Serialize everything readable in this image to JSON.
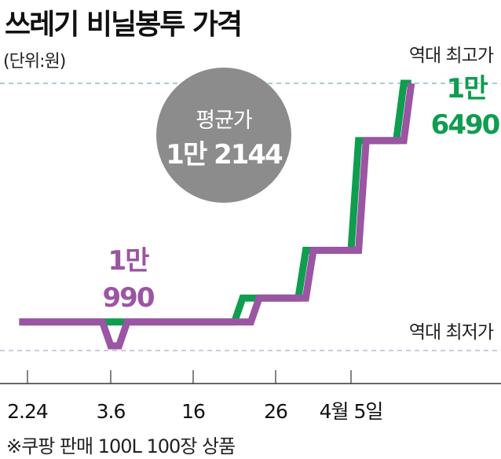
{
  "chart_data": {
    "type": "line",
    "title": "쓰레기 비닐봉투 가격",
    "unit_note": "(단위:원)",
    "footnote": "※쿠팡 판매 100L 100장 상품",
    "x_ticks": [
      {
        "date": "2.24",
        "label": "2.24"
      },
      {
        "date": "3.6",
        "label": "3.6"
      },
      {
        "date": "3.16",
        "label": "16"
      },
      {
        "date": "3.26",
        "label": "26"
      },
      {
        "date": "4.5",
        "label": "4월 5일"
      }
    ],
    "series": [
      {
        "color": "#0f9d4f",
        "points": [
          [
            "2.23",
            11490
          ],
          [
            "3.21",
            11490
          ],
          [
            "3.22",
            11990
          ],
          [
            "3.29",
            11990
          ],
          [
            "3.30",
            12990
          ],
          [
            "4.5",
            12990
          ],
          [
            "4.6",
            15290
          ],
          [
            "4.11",
            15290
          ],
          [
            "4.12",
            16490
          ],
          [
            "4.13",
            16490
          ]
        ]
      },
      {
        "color": "#9a55a3",
        "points": [
          [
            "2.23",
            11490
          ],
          [
            "3.5",
            11490
          ],
          [
            "3.6",
            10990
          ],
          [
            "3.7",
            10990
          ],
          [
            "3.8",
            11490
          ],
          [
            "3.23",
            11490
          ],
          [
            "3.24",
            11990
          ],
          [
            "3.30",
            11990
          ],
          [
            "3.31",
            12990
          ],
          [
            "4.6",
            12990
          ],
          [
            "4.7",
            15290
          ],
          [
            "4.12",
            15290
          ],
          [
            "4.13",
            16490
          ]
        ]
      }
    ],
    "reference_lines": [
      {
        "label": "역대 최고가",
        "value": 16490,
        "color": "#8fbfb5"
      },
      {
        "label": "역대 최저가",
        "value": 10990,
        "color": "#c9b3cf"
      }
    ],
    "annotations": {
      "max": {
        "line1": "1만",
        "line2": "6490",
        "color": "#0f9d4f"
      },
      "min": {
        "line1": "1만",
        "line2": "990",
        "color": "#9a55a3"
      },
      "average": {
        "label": "평균가",
        "value": "1만 2144",
        "color": "#8c8c8c"
      }
    },
    "ylim": [
      10990,
      16490
    ],
    "grid": false
  }
}
